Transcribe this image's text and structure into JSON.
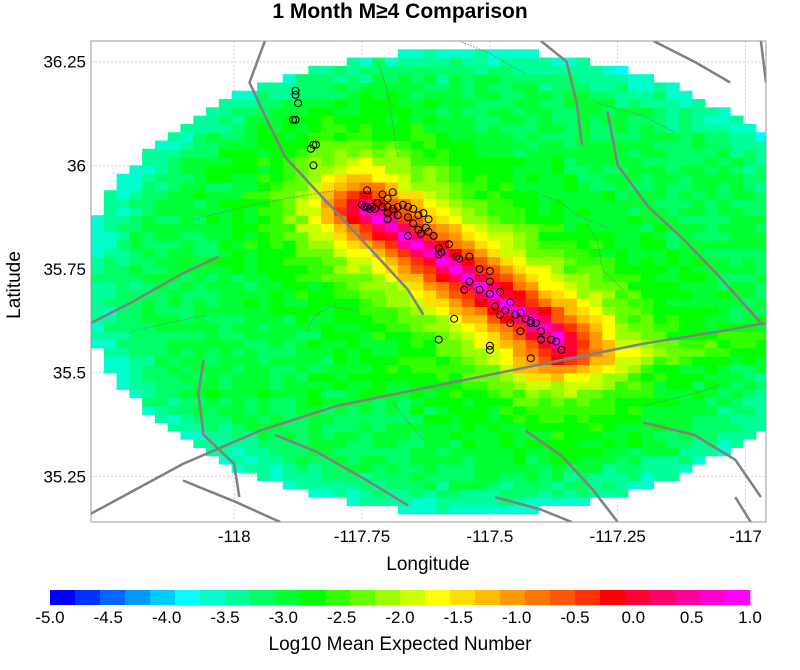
{
  "chart_data": {
    "type": "heatmap",
    "title": "1 Month M≥4 Comparison",
    "xlabel": "Longitude",
    "ylabel": "Latitude",
    "xlim": [
      -118.28,
      -116.96
    ],
    "ylim": [
      35.14,
      36.3
    ],
    "x_ticks": [
      {
        "value": -118,
        "label": "-118"
      },
      {
        "value": -117.75,
        "label": "-117.75"
      },
      {
        "value": -117.5,
        "label": "-117.5"
      },
      {
        "value": -117.25,
        "label": "-117.25"
      },
      {
        "value": -117,
        "label": "-117"
      }
    ],
    "y_ticks": [
      {
        "value": 36.25,
        "label": "36.25"
      },
      {
        "value": 36,
        "label": "36"
      },
      {
        "value": 35.75,
        "label": "35.75"
      },
      {
        "value": 35.5,
        "label": "35.5"
      },
      {
        "value": 35.25,
        "label": "35.25"
      }
    ],
    "grid": true,
    "colorbar": {
      "label": "Log10 Mean Expected Number",
      "min": -5.0,
      "max": 1.0,
      "tick_labels": [
        "-5.0",
        "-4.5",
        "-4.0",
        "-3.5",
        "-3.0",
        "-2.5",
        "-2.0",
        "-1.5",
        "-1.0",
        "-0.5",
        "0.0",
        "0.5",
        "1.0"
      ],
      "colors": [
        "#0000ff",
        "#0033ff",
        "#0066ff",
        "#0099ff",
        "#00ccff",
        "#00ffff",
        "#00ffcc",
        "#00ff99",
        "#00ff66",
        "#00ff33",
        "#00ff00",
        "#33ff00",
        "#66ff00",
        "#99ff00",
        "#ccff00",
        "#ffff00",
        "#ffdd00",
        "#ffbb00",
        "#ff9900",
        "#ff7700",
        "#ff5500",
        "#ff3300",
        "#ff0000",
        "#ff0033",
        "#ff0066",
        "#ff0099",
        "#ff00cc",
        "#ff00ff"
      ]
    },
    "forecast_model": {
      "base_level": -3.1,
      "peak_level": 0.9,
      "centerline": [
        [
          -117.75,
          35.9
        ],
        [
          -117.36,
          35.58
        ]
      ],
      "outer_ellipse": {
        "center": [
          -117.55,
          35.72
        ],
        "semi_lon": 0.75,
        "semi_lat": 0.56
      }
    },
    "earthquakes": [
      [
        -117.88,
        36.18
      ],
      [
        -117.88,
        36.17
      ],
      [
        -117.875,
        36.15
      ],
      [
        -117.885,
        36.11
      ],
      [
        -117.88,
        36.11
      ],
      [
        -117.85,
        36.04
      ],
      [
        -117.845,
        36.05
      ],
      [
        -117.84,
        36.05
      ],
      [
        -117.845,
        36.0
      ],
      [
        -117.74,
        35.94
      ],
      [
        -117.71,
        35.93
      ],
      [
        -117.69,
        35.935
      ],
      [
        -117.7,
        35.92
      ],
      [
        -117.72,
        35.91
      ],
      [
        -117.75,
        35.905
      ],
      [
        -117.745,
        35.9
      ],
      [
        -117.74,
        35.9
      ],
      [
        -117.735,
        35.895
      ],
      [
        -117.73,
        35.9
      ],
      [
        -117.725,
        35.895
      ],
      [
        -117.71,
        35.9
      ],
      [
        -117.7,
        35.9
      ],
      [
        -117.69,
        35.895
      ],
      [
        -117.68,
        35.9
      ],
      [
        -117.67,
        35.905
      ],
      [
        -117.66,
        35.9
      ],
      [
        -117.65,
        35.895
      ],
      [
        -117.7,
        35.885
      ],
      [
        -117.68,
        35.88
      ],
      [
        -117.66,
        35.875
      ],
      [
        -117.64,
        35.88
      ],
      [
        -117.63,
        35.885
      ],
      [
        -117.62,
        35.87
      ],
      [
        -117.65,
        35.86
      ],
      [
        -117.64,
        35.845
      ],
      [
        -117.635,
        35.835
      ],
      [
        -117.62,
        35.84
      ],
      [
        -117.61,
        35.83
      ],
      [
        -117.6,
        35.8
      ],
      [
        -117.595,
        35.79
      ],
      [
        -117.6,
        35.785
      ],
      [
        -117.58,
        35.81
      ],
      [
        -117.565,
        35.78
      ],
      [
        -117.56,
        35.775
      ],
      [
        -117.54,
        35.78
      ],
      [
        -117.52,
        35.75
      ],
      [
        -117.5,
        35.745
      ],
      [
        -117.5,
        35.72
      ],
      [
        -117.54,
        35.72
      ],
      [
        -117.55,
        35.7
      ],
      [
        -117.52,
        35.7
      ],
      [
        -117.5,
        35.69
      ],
      [
        -117.48,
        35.695
      ],
      [
        -117.49,
        35.66
      ],
      [
        -117.46,
        35.67
      ],
      [
        -117.45,
        35.64
      ],
      [
        -117.44,
        35.645
      ],
      [
        -117.43,
        35.63
      ],
      [
        -117.42,
        35.625
      ],
      [
        -117.41,
        35.62
      ],
      [
        -117.4,
        35.6
      ],
      [
        -117.38,
        35.58
      ],
      [
        -117.37,
        35.575
      ],
      [
        -117.36,
        35.555
      ],
      [
        -117.42,
        35.62
      ],
      [
        -117.44,
        35.6
      ],
      [
        -117.46,
        35.62
      ],
      [
        -117.48,
        35.64
      ],
      [
        -117.47,
        35.65
      ],
      [
        -117.57,
        35.63
      ],
      [
        -117.6,
        35.58
      ],
      [
        -117.5,
        35.565
      ],
      [
        -117.5,
        35.555
      ],
      [
        -117.42,
        35.535
      ],
      [
        -117.4,
        35.58
      ],
      [
        -117.6,
        35.8
      ],
      [
        -117.625,
        35.85
      ],
      [
        -117.7,
        35.87
      ],
      [
        -117.66,
        35.83
      ]
    ],
    "faults": [
      [
        [
          -117.94,
          36.3
        ],
        [
          -117.97,
          36.2
        ],
        [
          -117.94,
          36.12
        ],
        [
          -117.9,
          36.02
        ],
        [
          -117.84,
          35.94
        ],
        [
          -117.78,
          35.86
        ],
        [
          -117.72,
          35.78
        ],
        [
          -117.66,
          35.7
        ],
        [
          -117.63,
          35.64
        ]
      ],
      [
        [
          -118.28,
          35.16
        ],
        [
          -118.1,
          35.28
        ],
        [
          -117.95,
          35.36
        ],
        [
          -117.8,
          35.42
        ],
        [
          -117.6,
          35.47
        ],
        [
          -117.4,
          35.52
        ],
        [
          -117.2,
          35.57
        ],
        [
          -117.05,
          35.6
        ],
        [
          -116.96,
          35.62
        ]
      ],
      [
        [
          -118.28,
          35.62
        ],
        [
          -118.2,
          35.67
        ],
        [
          -118.1,
          35.74
        ],
        [
          -118.03,
          35.78
        ]
      ],
      [
        [
          -118.06,
          35.53
        ],
        [
          -118.07,
          35.45
        ],
        [
          -118.06,
          35.35
        ],
        [
          -118.0,
          35.28
        ],
        [
          -117.99,
          35.2
        ]
      ],
      [
        [
          -117.92,
          35.35
        ],
        [
          -117.84,
          35.31
        ],
        [
          -117.74,
          35.24
        ],
        [
          -117.66,
          35.18
        ]
      ],
      [
        [
          -117.43,
          35.36
        ],
        [
          -117.36,
          35.3
        ],
        [
          -117.3,
          35.22
        ],
        [
          -117.25,
          35.14
        ]
      ],
      [
        [
          -117.2,
          35.38
        ],
        [
          -117.1,
          35.35
        ],
        [
          -117.02,
          35.29
        ],
        [
          -116.97,
          35.2
        ]
      ],
      [
        [
          -117.18,
          36.3
        ],
        [
          -117.1,
          36.25
        ],
        [
          -117.03,
          36.2
        ]
      ],
      [
        [
          -117.27,
          36.13
        ],
        [
          -117.25,
          36.0
        ],
        [
          -117.19,
          35.9
        ],
        [
          -117.12,
          35.82
        ],
        [
          -117.05,
          35.73
        ],
        [
          -116.97,
          35.62
        ]
      ],
      [
        [
          -117.4,
          36.3
        ],
        [
          -117.35,
          36.25
        ],
        [
          -117.33,
          36.15
        ],
        [
          -117.32,
          36.05
        ]
      ],
      [
        [
          -117.02,
          35.2
        ],
        [
          -116.99,
          35.14
        ]
      ],
      [
        [
          -116.97,
          36.3
        ],
        [
          -116.96,
          36.2
        ]
      ],
      [
        [
          -118.1,
          35.24
        ],
        [
          -118.0,
          35.19
        ],
        [
          -117.91,
          35.14
        ]
      ],
      [
        [
          -117.49,
          35.2
        ],
        [
          -117.4,
          35.17
        ],
        [
          -117.34,
          35.14
        ]
      ]
    ],
    "fault_zones": [
      [
        [
          -117.76,
          35.65
        ],
        [
          -117.81,
          35.66
        ],
        [
          -117.84,
          35.64
        ],
        [
          -117.86,
          35.6
        ]
      ],
      [
        [
          -118.08,
          35.87
        ],
        [
          -117.98,
          35.9
        ],
        [
          -117.9,
          35.92
        ],
        [
          -117.85,
          35.93
        ],
        [
          -117.8,
          35.94
        ]
      ],
      [
        [
          -117.72,
          36.25
        ],
        [
          -117.7,
          36.18
        ],
        [
          -117.69,
          36.1
        ],
        [
          -117.68,
          36.02
        ]
      ],
      [
        [
          -117.27,
          35.85
        ],
        [
          -117.33,
          35.88
        ],
        [
          -117.36,
          35.91
        ],
        [
          -117.4,
          35.93
        ]
      ],
      [
        [
          -117.24,
          35.7
        ],
        [
          -117.28,
          35.75
        ],
        [
          -117.29,
          35.82
        ],
        [
          -117.31,
          35.86
        ]
      ],
      [
        [
          -117.14,
          36.08
        ],
        [
          -117.2,
          36.12
        ],
        [
          -117.29,
          36.15
        ]
      ],
      [
        [
          -117.05,
          35.47
        ],
        [
          -117.1,
          35.45
        ],
        [
          -117.2,
          35.42
        ]
      ],
      [
        [
          -117.56,
          36.3
        ],
        [
          -117.5,
          36.27
        ],
        [
          -117.43,
          36.22
        ]
      ],
      [
        [
          -117.63,
          35.34
        ],
        [
          -117.66,
          35.38
        ],
        [
          -117.69,
          35.43
        ]
      ],
      [
        [
          -118.2,
          35.6
        ],
        [
          -118.13,
          35.62
        ],
        [
          -118.05,
          35.64
        ]
      ]
    ]
  }
}
